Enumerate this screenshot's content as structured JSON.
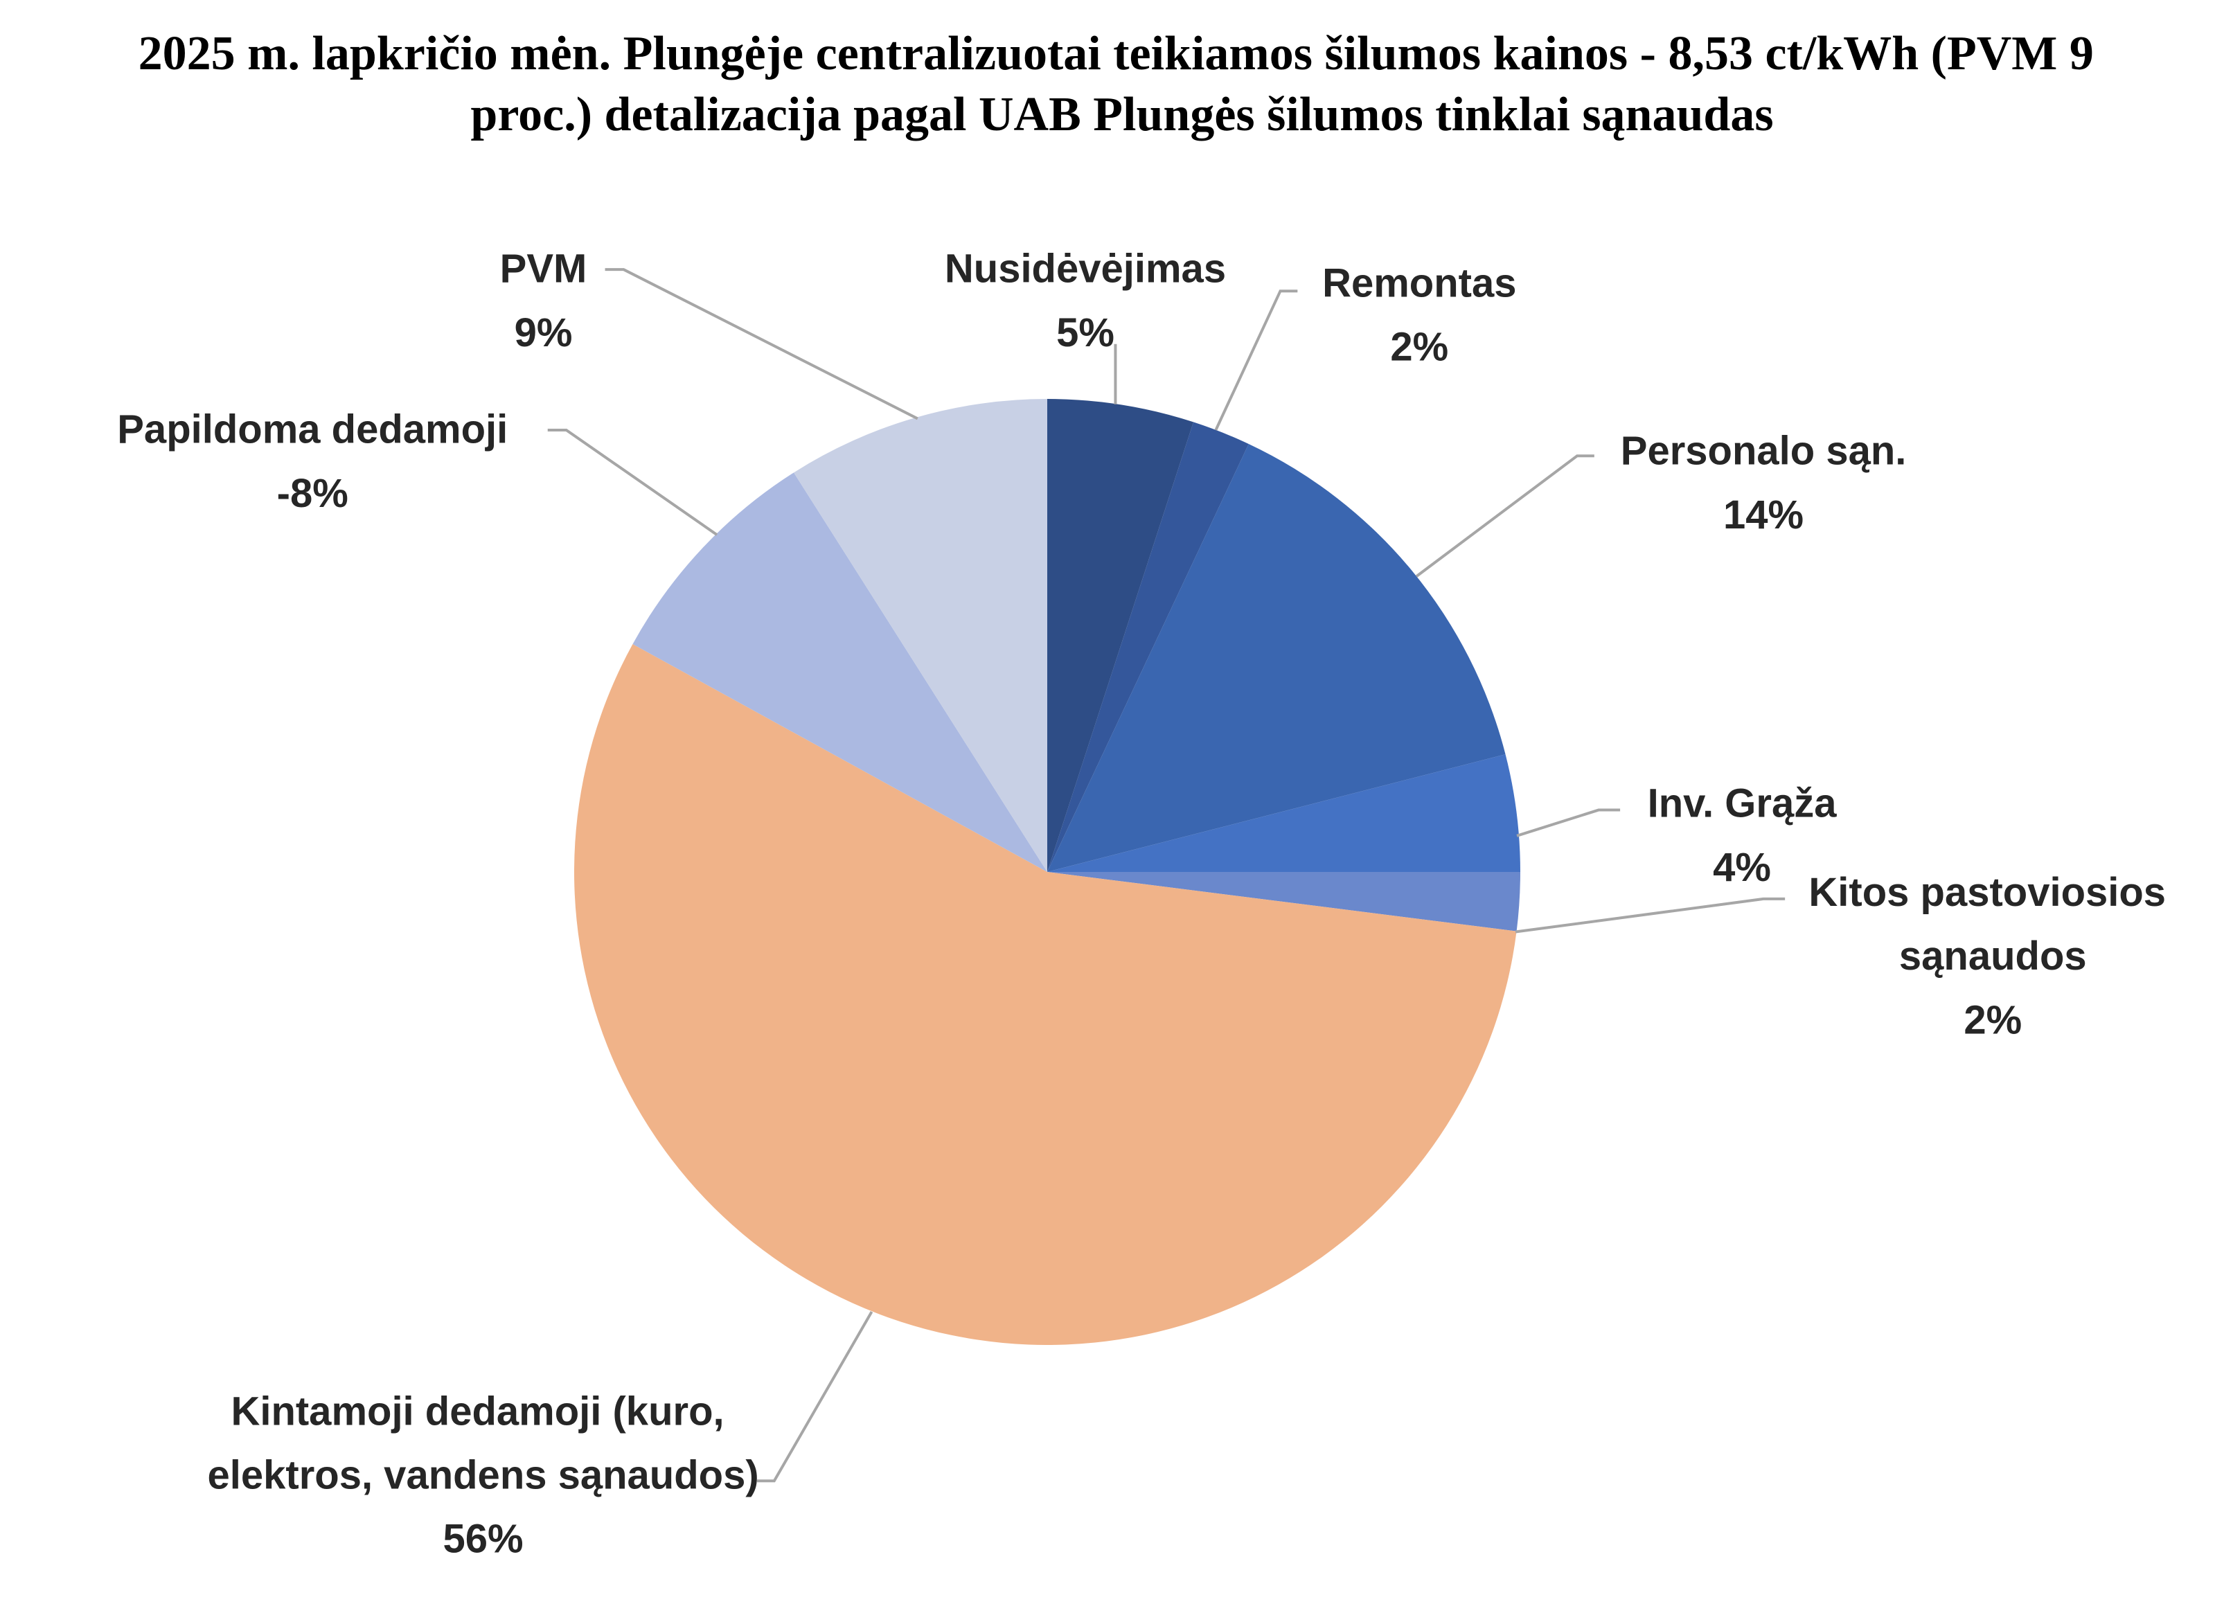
{
  "chart_data": {
    "type": "pie",
    "title": "2025 m. lapkričio mėn. Plungėje centralizuotai teikiamos šilumos kainos - 8,53 ct/kWh (PVM 9 proc.) detalizacija pagal UAB Plungės šilumos tinklai sąnaudas",
    "categories": [
      "Nusidėvėjimas",
      "Remontas",
      "Personalo sąn.",
      "Inv. Grąža",
      "Kitos pastoviosios sąnaudos",
      "Kintamoji dedamoji (kuro, elektros, vandens sąnaudos)",
      "Papildoma dedamoji",
      "PVM"
    ],
    "values": [
      5,
      2,
      14,
      4,
      2,
      56,
      -8,
      9
    ],
    "value_labels": [
      "5%",
      "2%",
      "14%",
      "4%",
      "2%",
      "56%",
      "-8%",
      "9%"
    ],
    "colors": [
      "#2e4d86",
      "#34579b",
      "#3a66b0",
      "#4472c4",
      "#6a88cc",
      "#f0b389",
      "#abb9e1",
      "#c8d0e5"
    ]
  }
}
